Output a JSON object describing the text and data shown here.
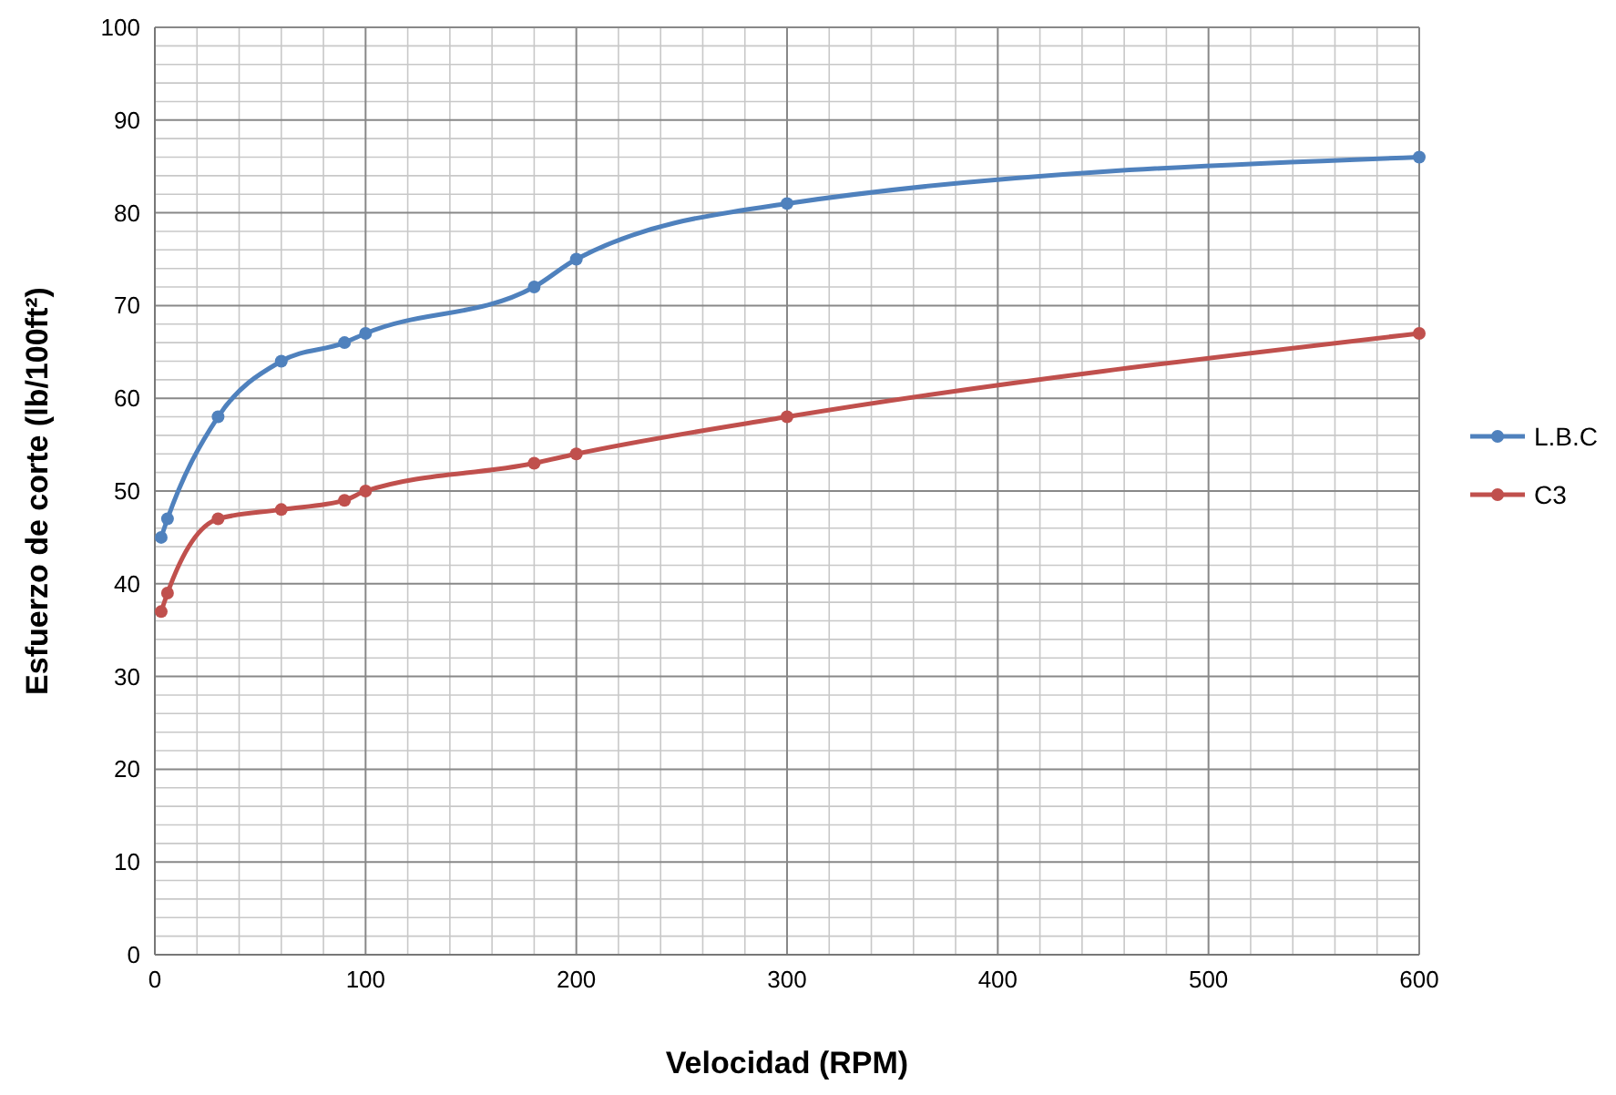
{
  "chart_data": {
    "type": "line",
    "xlabel": "Velocidad (RPM)",
    "ylabel": "Esfuerzo de corte (lb/100ft²)",
    "x": [
      3,
      6,
      30,
      60,
      90,
      100,
      180,
      200,
      300,
      600
    ],
    "series": [
      {
        "name": "L.B.C",
        "color": "#4f81bd",
        "values": [
          45,
          47,
          58,
          64,
          66,
          67,
          72,
          75,
          81,
          86
        ]
      },
      {
        "name": "C3",
        "color": "#c0504d",
        "values": [
          37,
          39,
          47,
          48,
          49,
          50,
          53,
          54,
          58,
          67
        ]
      }
    ],
    "xlim": [
      0,
      600
    ],
    "xticks": [
      0,
      100,
      200,
      300,
      400,
      500,
      600
    ],
    "ylim": [
      0,
      100
    ],
    "yticks": [
      0,
      10,
      20,
      30,
      40,
      50,
      60,
      70,
      80,
      90,
      100
    ],
    "grid": true,
    "legend": "right",
    "marker": "circle",
    "line_style": "solid"
  }
}
